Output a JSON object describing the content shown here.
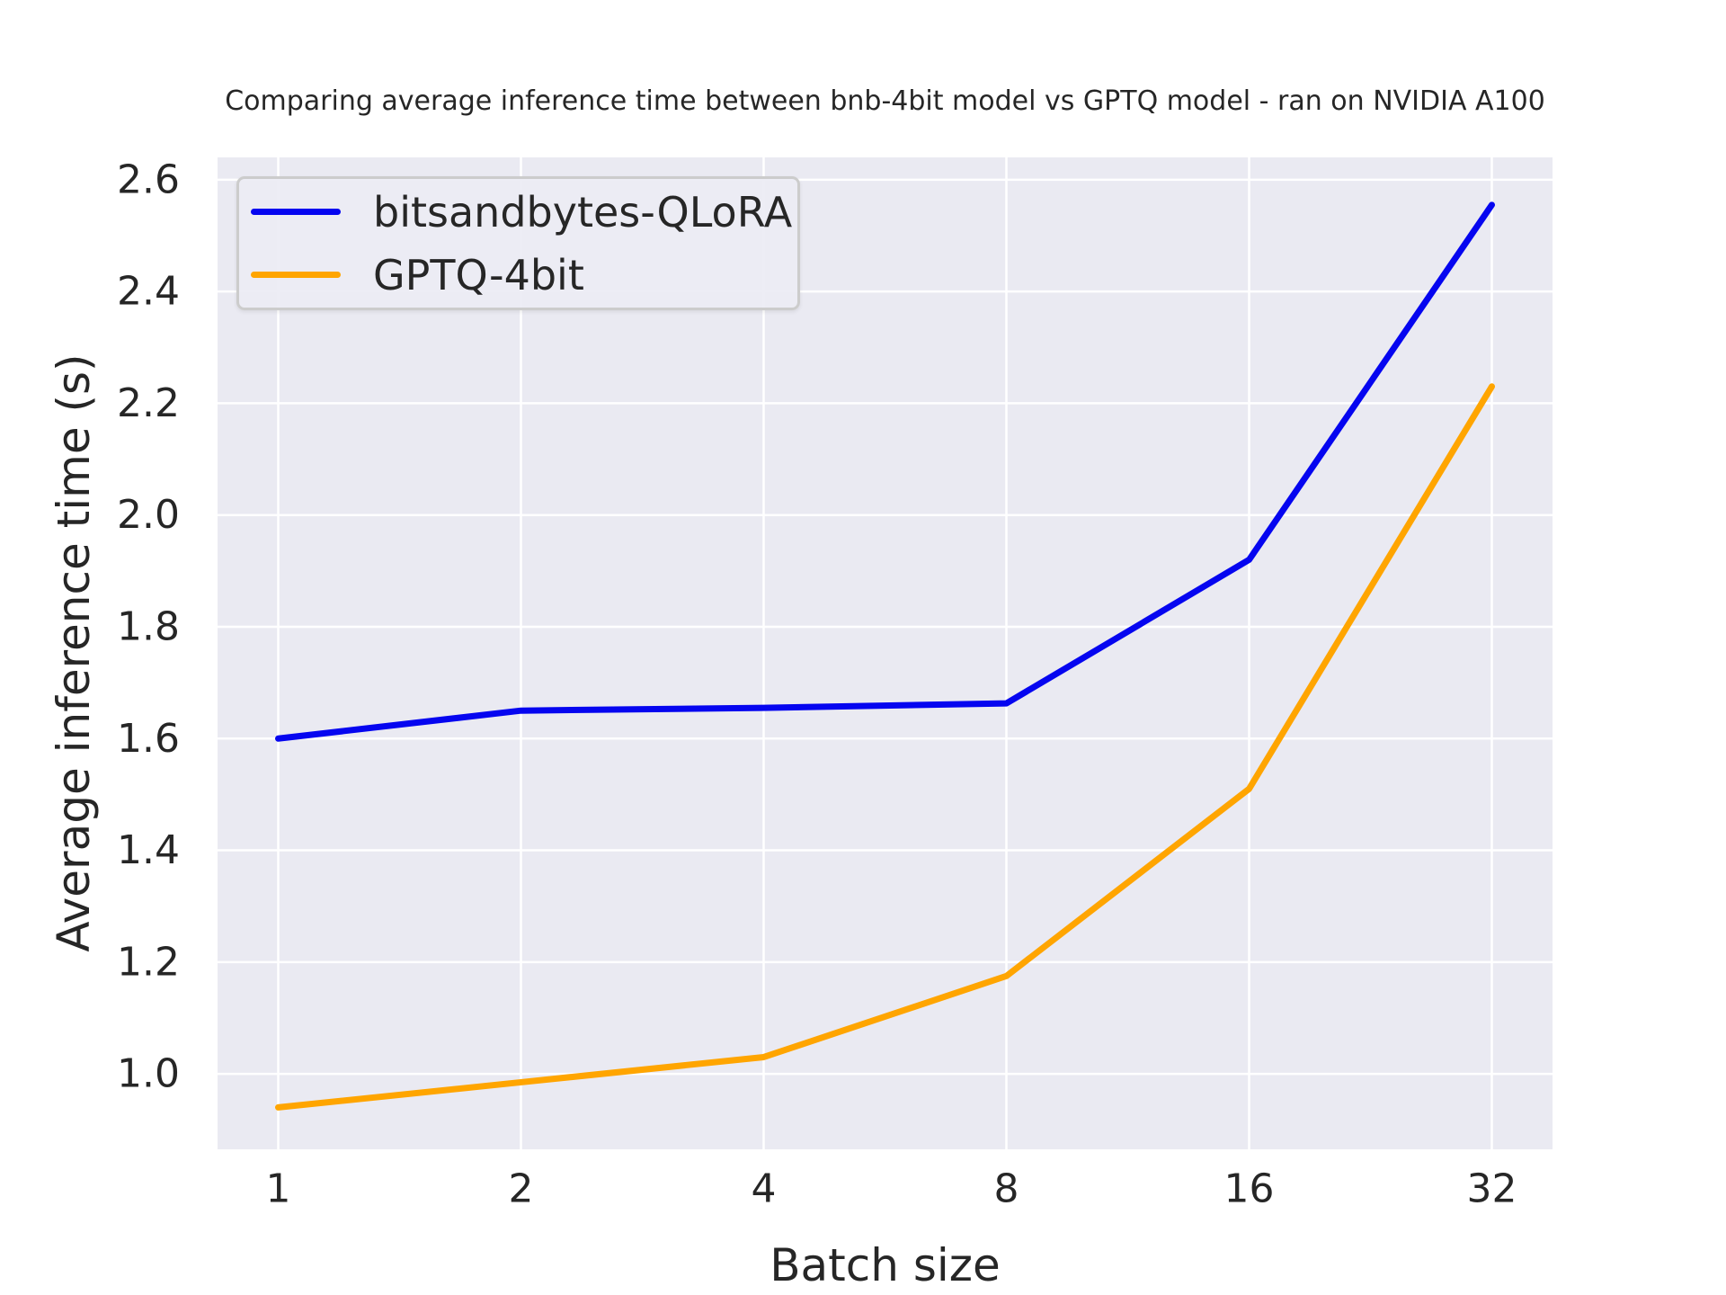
{
  "chart_data": {
    "type": "line",
    "title": "Comparing average inference time between bnb-4bit model vs GPTQ model - ran on NVIDIA A100",
    "xlabel": "Batch size",
    "ylabel": "Average inference time (s)",
    "x_scale": "log2",
    "categories": [
      1,
      2,
      4,
      8,
      16,
      32
    ],
    "xtick_labels": [
      "1",
      "2",
      "4",
      "8",
      "16",
      "32"
    ],
    "yticks": [
      1.0,
      1.2,
      1.4,
      1.6,
      1.8,
      2.0,
      2.2,
      2.4,
      2.6
    ],
    "ytick_labels": [
      "1.0",
      "1.2",
      "1.4",
      "1.6",
      "1.8",
      "2.0",
      "2.2",
      "2.4",
      "2.6"
    ],
    "ylim": [
      0.865,
      2.64
    ],
    "grid": true,
    "legend_position": "upper-left",
    "series": [
      {
        "name": "bitsandbytes-QLoRA",
        "color": "#0505f0",
        "values": [
          1.6,
          1.65,
          1.655,
          1.663,
          1.92,
          2.555
        ]
      },
      {
        "name": "GPTQ-4bit",
        "color": "#ffa500",
        "values": [
          0.94,
          0.985,
          1.03,
          1.175,
          1.51,
          2.23
        ]
      }
    ],
    "colors": {
      "plot_background": "#eaeaf2",
      "gridline": "#ffffff",
      "text": "#262626",
      "legend_background": "#ececf4",
      "legend_border": "#cccccc"
    }
  }
}
